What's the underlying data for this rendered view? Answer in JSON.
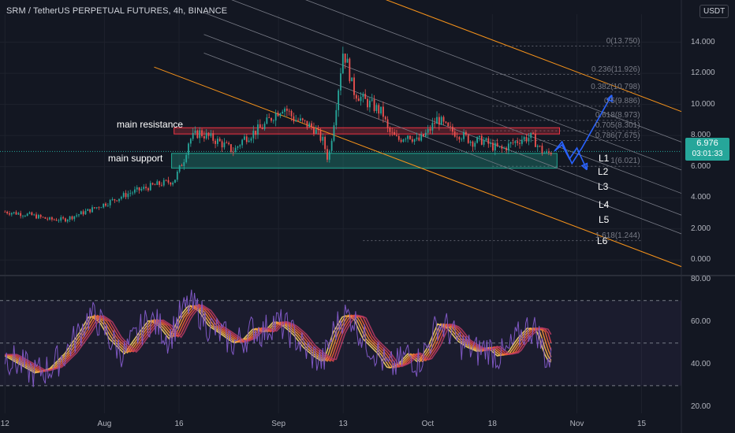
{
  "header": {
    "title": "SRM / TetherUS PERPETUAL FUTURES, 4h, BINANCE",
    "currency": "USDT"
  },
  "price_badge": {
    "price": "6.976",
    "countdown": "03:01:33"
  },
  "annotations": {
    "resistance": "main resistance",
    "support": "main support"
  },
  "levels": [
    "L1",
    "L2",
    "L3",
    "L4",
    "L5",
    "L6"
  ],
  "fib_levels": [
    {
      "label": "0(13.750)",
      "value": 13.75
    },
    {
      "label": "0.236(11.926)",
      "value": 11.926
    },
    {
      "label": "0.382(10.798)",
      "value": 10.798
    },
    {
      "label": "0.5(9.886)",
      "value": 9.886
    },
    {
      "label": "0.618(8.973)",
      "value": 8.973
    },
    {
      "label": "0.705(8.301)",
      "value": 8.301
    },
    {
      "label": "0.786(7.675)",
      "value": 7.675
    },
    {
      "label": "1(6.021)",
      "value": 6.021
    },
    {
      "label": "1.618(1.244)",
      "value": 1.244
    }
  ],
  "colors": {
    "background": "#131722",
    "up": "#26a69a",
    "down": "#ef5350",
    "channel": "#f7931a",
    "resistance_zone": "#f23645",
    "support_zone": "#22ab94",
    "projection": "#2962ff",
    "rsi_line": "#7e57c2"
  },
  "chart_data": [
    {
      "type": "candlestick",
      "title": "SRM / TetherUS PERPETUAL FUTURES, 4h, BINANCE",
      "y_ticks": [
        "14.000",
        "12.000",
        "10.000",
        "8.000",
        "6.000",
        "4.000",
        "2.000",
        "0.000"
      ],
      "y_tick_values": [
        14,
        12,
        10,
        8,
        6,
        4,
        2,
        0
      ],
      "ylim": [
        -0.9,
        15.8
      ],
      "x_ticks": [
        "12",
        "Aug",
        "16",
        "Sep",
        "13",
        "Oct",
        "18",
        "Nov",
        "15"
      ],
      "x_tick_days": [
        0,
        20,
        35,
        55,
        68,
        85,
        98,
        115,
        128
      ],
      "xlim": [
        -1,
        136
      ],
      "last_price": 6.976,
      "price_path": [
        [
          0,
          3.1
        ],
        [
          5,
          2.9
        ],
        [
          9,
          2.6
        ],
        [
          12,
          2.6
        ],
        [
          17,
          3.2
        ],
        [
          20,
          3.6
        ],
        [
          25,
          4.3
        ],
        [
          30,
          4.8
        ],
        [
          34,
          5.1
        ],
        [
          36,
          6.5
        ],
        [
          37,
          7.7
        ],
        [
          39,
          8.2
        ],
        [
          43,
          7.6
        ],
        [
          46,
          7.0
        ],
        [
          48,
          7.8
        ],
        [
          52,
          8.6
        ],
        [
          54,
          9.3
        ],
        [
          56,
          9.9
        ],
        [
          58,
          9.1
        ],
        [
          62,
          8.5
        ],
        [
          64,
          7.6
        ],
        [
          65,
          6.4
        ],
        [
          66,
          8.6
        ],
        [
          67,
          11.0
        ],
        [
          68,
          13.5
        ],
        [
          69,
          12.4
        ],
        [
          70,
          10.9
        ],
        [
          72,
          10.3
        ],
        [
          74,
          9.9
        ],
        [
          76,
          9.4
        ],
        [
          77,
          8.3
        ],
        [
          79,
          7.7
        ],
        [
          81,
          8.1
        ],
        [
          83,
          7.6
        ],
        [
          85,
          8.2
        ],
        [
          87,
          9.1
        ],
        [
          89,
          8.4
        ],
        [
          92,
          8.0
        ],
        [
          94,
          7.6
        ],
        [
          96,
          7.7
        ],
        [
          98,
          7.3
        ],
        [
          100,
          7.1
        ],
        [
          102,
          7.5
        ],
        [
          104,
          7.8
        ],
        [
          106,
          7.9
        ],
        [
          107,
          7.4
        ],
        [
          108,
          7.0
        ],
        [
          109,
          6.8
        ],
        [
          110,
          7.0
        ]
      ]
    },
    {
      "type": "line",
      "name": "RSI",
      "y_ticks": [
        "80.00",
        "60.00",
        "40.00",
        "20.00"
      ],
      "y_tick_values": [
        80,
        60,
        40,
        20
      ],
      "ylim": [
        17,
        81
      ],
      "bands": [
        70,
        50,
        30
      ],
      "rsi_path": [
        [
          0,
          44
        ],
        [
          3,
          40
        ],
        [
          6,
          36
        ],
        [
          9,
          38
        ],
        [
          12,
          45
        ],
        [
          15,
          55
        ],
        [
          17,
          63
        ],
        [
          19,
          60
        ],
        [
          21,
          52
        ],
        [
          24,
          45
        ],
        [
          27,
          55
        ],
        [
          29,
          61
        ],
        [
          31,
          58
        ],
        [
          33,
          52
        ],
        [
          35,
          62
        ],
        [
          37,
          68
        ],
        [
          39,
          65
        ],
        [
          41,
          58
        ],
        [
          43,
          55
        ],
        [
          46,
          50
        ],
        [
          48,
          52
        ],
        [
          50,
          57
        ],
        [
          52,
          55
        ],
        [
          54,
          60
        ],
        [
          56,
          58
        ],
        [
          58,
          54
        ],
        [
          60,
          48
        ],
        [
          62,
          44
        ],
        [
          64,
          41
        ],
        [
          66,
          55
        ],
        [
          68,
          63
        ],
        [
          70,
          62
        ],
        [
          72,
          52
        ],
        [
          75,
          45
        ],
        [
          77,
          38
        ],
        [
          79,
          40
        ],
        [
          81,
          45
        ],
        [
          83,
          41
        ],
        [
          85,
          48
        ],
        [
          87,
          59
        ],
        [
          89,
          57
        ],
        [
          91,
          51
        ],
        [
          93,
          48
        ],
        [
          95,
          46
        ],
        [
          97,
          48
        ],
        [
          99,
          44
        ],
        [
          101,
          45
        ],
        [
          103,
          52
        ],
        [
          105,
          57
        ],
        [
          107,
          56
        ],
        [
          108,
          48
        ],
        [
          109,
          42
        ],
        [
          110,
          41
        ]
      ]
    }
  ]
}
